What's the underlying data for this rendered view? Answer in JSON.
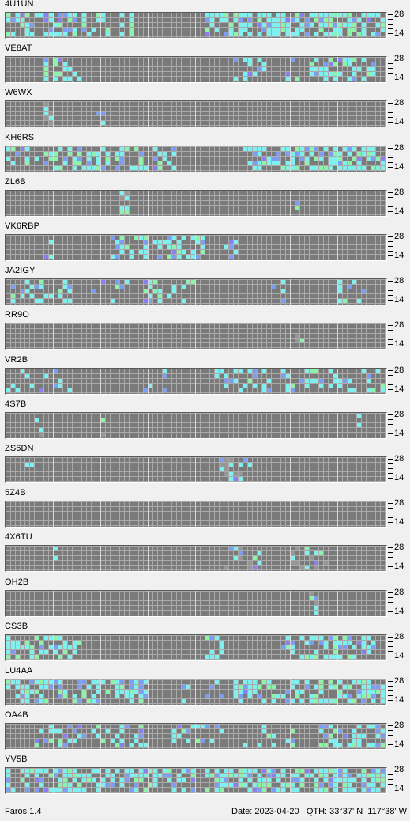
{
  "app": {
    "name_version": "Faros 1.4"
  },
  "status": {
    "date_label": "Date:",
    "date": "2023-04-20",
    "qth_label": "QTH:",
    "lat": "33°37' N",
    "lon": "117°38' W"
  },
  "scale": {
    "top": "28",
    "bottom": "14"
  },
  "colors": {
    "grid_background": "#7a7a7a",
    "grid_lines": "#aaaaaa",
    "hour_lines": "#d8d8d8",
    "cyan": "#7ff0f0",
    "green": "#8ef2a8",
    "blue": "#7f9cf5",
    "violet": "#8a7ff0",
    "gray": "#969696"
  },
  "beacons": [
    {
      "name": "4U1UN",
      "intensity": "high",
      "clusters": [
        {
          "from": 0,
          "to": 15,
          "density": 0.55
        },
        {
          "from": 16,
          "to": 28,
          "density": 0.45
        },
        {
          "from": 42,
          "to": 80,
          "density": 0.65
        }
      ]
    },
    {
      "name": "VE8AT",
      "intensity": "medium",
      "clusters": [
        {
          "from": 8,
          "to": 16,
          "density": 0.35
        },
        {
          "from": 48,
          "to": 62,
          "density": 0.2
        },
        {
          "from": 64,
          "to": 78,
          "density": 0.45
        }
      ]
    },
    {
      "name": "W6WX",
      "intensity": "low",
      "clusters": [
        {
          "from": 8,
          "to": 10,
          "density": 0.6
        },
        {
          "from": 19,
          "to": 21,
          "density": 0.4
        }
      ]
    },
    {
      "name": "KH6RS",
      "intensity": "high",
      "clusters": [
        {
          "from": 0,
          "to": 36,
          "density": 0.45
        },
        {
          "from": 50,
          "to": 80,
          "density": 0.55
        }
      ]
    },
    {
      "name": "ZL6B",
      "intensity": "low",
      "clusters": [
        {
          "from": 24,
          "to": 26,
          "density": 0.7
        },
        {
          "from": 61,
          "to": 63,
          "density": 0.2
        }
      ]
    },
    {
      "name": "VK6RBP",
      "intensity": "medium",
      "clusters": [
        {
          "from": 7,
          "to": 10,
          "density": 0.5
        },
        {
          "from": 22,
          "to": 30,
          "density": 0.4
        },
        {
          "from": 31,
          "to": 42,
          "density": 0.55
        },
        {
          "from": 46,
          "to": 50,
          "density": 0.3
        }
      ]
    },
    {
      "name": "JA2IGY",
      "intensity": "medium",
      "clusters": [
        {
          "from": 1,
          "to": 15,
          "density": 0.3
        },
        {
          "from": 18,
          "to": 26,
          "density": 0.2
        },
        {
          "from": 29,
          "to": 40,
          "density": 0.35
        },
        {
          "from": 56,
          "to": 62,
          "density": 0.2
        },
        {
          "from": 68,
          "to": 76,
          "density": 0.2
        }
      ]
    },
    {
      "name": "RR9O",
      "intensity": "low",
      "clusters": [
        {
          "from": 61,
          "to": 63,
          "density": 0.3
        }
      ]
    },
    {
      "name": "VR2B",
      "intensity": "medium",
      "clusters": [
        {
          "from": 0,
          "to": 14,
          "density": 0.2
        },
        {
          "from": 28,
          "to": 34,
          "density": 0.2
        },
        {
          "from": 44,
          "to": 56,
          "density": 0.3
        },
        {
          "from": 58,
          "to": 80,
          "density": 0.3
        }
      ]
    },
    {
      "name": "4S7B",
      "intensity": "low",
      "clusters": [
        {
          "from": 6,
          "to": 8,
          "density": 0.3
        },
        {
          "from": 20,
          "to": 22,
          "density": 0.3
        },
        {
          "from": 74,
          "to": 76,
          "density": 0.3
        }
      ]
    },
    {
      "name": "ZS6DN",
      "intensity": "low",
      "clusters": [
        {
          "from": 4,
          "to": 6,
          "density": 0.4
        },
        {
          "from": 45,
          "to": 52,
          "density": 0.5
        }
      ]
    },
    {
      "name": "5Z4B",
      "intensity": "none",
      "clusters": []
    },
    {
      "name": "4X6TU",
      "intensity": "low",
      "clusters": [
        {
          "from": 10,
          "to": 12,
          "density": 0.3
        },
        {
          "from": 46,
          "to": 54,
          "density": 0.3
        },
        {
          "from": 60,
          "to": 68,
          "density": 0.4
        }
      ]
    },
    {
      "name": "OH2B",
      "intensity": "low",
      "clusters": [
        {
          "from": 64,
          "to": 66,
          "density": 0.6
        }
      ]
    },
    {
      "name": "CS3B",
      "intensity": "medium",
      "clusters": [
        {
          "from": 0,
          "to": 16,
          "density": 0.45
        },
        {
          "from": 42,
          "to": 46,
          "density": 0.3
        },
        {
          "from": 57,
          "to": 78,
          "density": 0.5
        }
      ]
    },
    {
      "name": "LU4AA",
      "intensity": "high",
      "clusters": [
        {
          "from": 0,
          "to": 30,
          "density": 0.5
        },
        {
          "from": 36,
          "to": 46,
          "density": 0.2
        },
        {
          "from": 48,
          "to": 80,
          "density": 0.55
        }
      ]
    },
    {
      "name": "OA4B",
      "intensity": "medium",
      "clusters": [
        {
          "from": 6,
          "to": 30,
          "density": 0.3
        },
        {
          "from": 35,
          "to": 46,
          "density": 0.25
        },
        {
          "from": 50,
          "to": 62,
          "density": 0.3
        },
        {
          "from": 66,
          "to": 80,
          "density": 0.4
        }
      ]
    },
    {
      "name": "YV5B",
      "intensity": "high",
      "clusters": [
        {
          "from": 0,
          "to": 40,
          "density": 0.55
        },
        {
          "from": 42,
          "to": 80,
          "density": 0.65
        }
      ]
    }
  ]
}
